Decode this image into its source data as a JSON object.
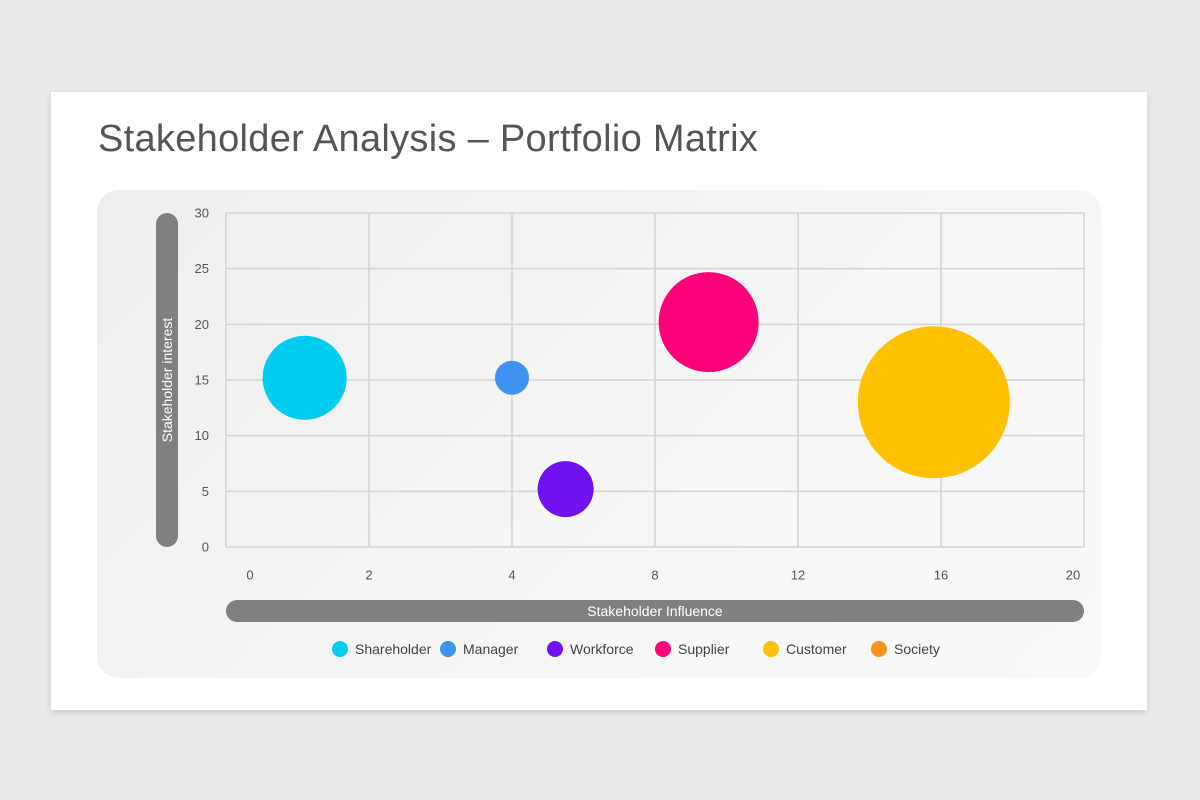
{
  "slide": {
    "title": "Stakeholder Analysis – Portfolio Matrix"
  },
  "chart_data": {
    "type": "bubble",
    "xlabel": "Stakeholder Influence",
    "ylabel": "Stakeholder interest",
    "xticks": [
      "0",
      "2",
      "4",
      "8",
      "12",
      "16",
      "20"
    ],
    "yticks": [
      "0",
      "5",
      "10",
      "15",
      "20",
      "25",
      "30"
    ],
    "ylim": [
      0,
      30
    ],
    "grid": true,
    "legend_position": "bottom",
    "series": [
      {
        "name": "Shareholder",
        "x": 1.1,
        "y": 15.2,
        "size": 42,
        "color": "#00ccf0"
      },
      {
        "name": "Manager",
        "x": 4.0,
        "y": 15.2,
        "size": 17,
        "color": "#3e92f0"
      },
      {
        "name": "Workforce",
        "x": 5.5,
        "y": 5.2,
        "size": 28,
        "color": "#7111f0"
      },
      {
        "name": "Supplier",
        "x": 9.5,
        "y": 20.2,
        "size": 50,
        "color": "#ff0078"
      },
      {
        "name": "Customer",
        "x": 15.8,
        "y": 13.0,
        "size": 76,
        "color": "#ffc000"
      },
      {
        "name": "Society",
        "x": null,
        "y": null,
        "size": null,
        "color": "#f5921d"
      }
    ]
  }
}
